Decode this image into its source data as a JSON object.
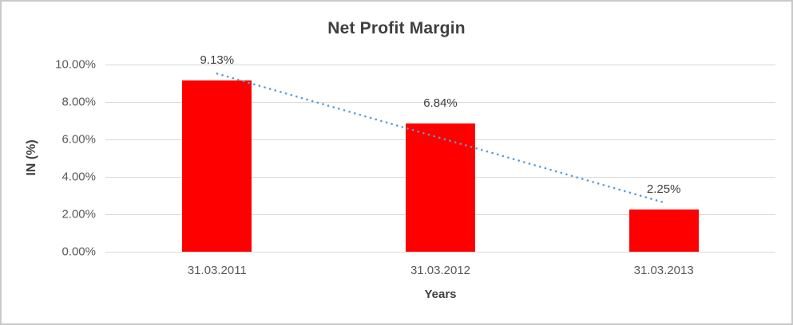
{
  "chart_data": {
    "type": "bar",
    "title": "Net Profit Margin",
    "xlabel": "Years",
    "ylabel": "IN (%)",
    "categories": [
      "31.03.2011",
      "31.03.2012",
      "31.03.2013"
    ],
    "values": [
      9.13,
      6.84,
      2.25
    ],
    "data_labels": [
      "9.13%",
      "6.84%",
      "2.25%"
    ],
    "ylim": [
      0,
      10
    ],
    "yticks": [
      {
        "value": 0,
        "label": "0.00%"
      },
      {
        "value": 2,
        "label": "2.00%"
      },
      {
        "value": 4,
        "label": "4.00%"
      },
      {
        "value": 6,
        "label": "6.00%"
      },
      {
        "value": 8,
        "label": "8.00%"
      },
      {
        "value": 10,
        "label": "10.00%"
      }
    ],
    "grid": true,
    "legend": "none",
    "trendline": {
      "type": "linear",
      "style": "dotted"
    }
  },
  "colors": {
    "bar": "#ff0000",
    "trendline": "#5b9bd5",
    "gridline": "#d9d9d9",
    "tick_text": "#595959",
    "title_text": "#3f3f3f",
    "frame_border": "#c9c9c9"
  }
}
